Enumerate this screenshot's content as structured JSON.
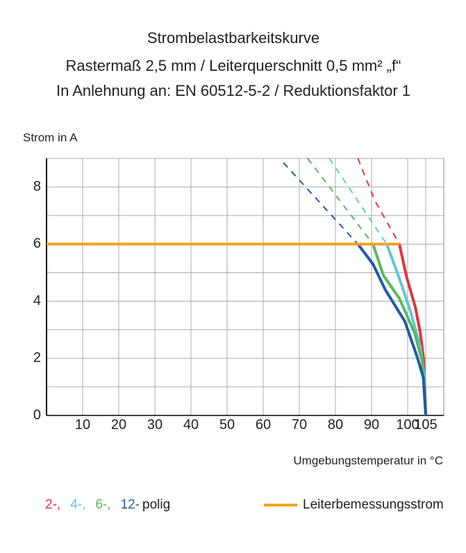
{
  "chart_data": {
    "type": "line",
    "title": "Strombelastbarkeitskurve",
    "subtitle": [
      "Rastermaß 2,5 mm / Leiterquerschnitt 0,5 mm² „f“",
      "In Anlehnung an: EN 60512-5-2 / Reduktionsfaktor 1"
    ],
    "y_label": "Strom in A",
    "x_label": "Umgebungstemperatur in °C",
    "xlim": [
      0,
      110
    ],
    "ylim": [
      0,
      9
    ],
    "xticks": [
      10,
      20,
      30,
      40,
      50,
      60,
      70,
      80,
      90,
      100,
      105
    ],
    "yticks": [
      0,
      2,
      4,
      6,
      8
    ],
    "y_minor_grid": [
      1,
      3,
      5,
      7,
      9
    ],
    "grid": true,
    "legend_suffix": "polig",
    "series": [
      {
        "name": "2-,",
        "color": "#e2343a",
        "x": [
          97.7,
          99.6,
          102.1,
          103.5,
          104.4,
          104.8,
          105
        ],
        "values": [
          6,
          4.9,
          3.8,
          2.9,
          2,
          0.9,
          0
        ],
        "extension": {
          "x": [
            86.2,
            91,
            97.7
          ],
          "values": [
            9,
            7.5,
            6
          ]
        }
      },
      {
        "name": "4-,",
        "color": "#5ec8d5",
        "x": [
          94.2,
          97.7,
          100.9,
          103.5,
          104.6,
          105
        ],
        "values": [
          6,
          4.8,
          3.6,
          2.4,
          1.4,
          0
        ],
        "extension": {
          "x": [
            78.3,
            94.2
          ],
          "values": [
            9,
            6
          ]
        }
      },
      {
        "name": "6-,",
        "color": "#5cb85a",
        "x": [
          90.4,
          93.3,
          97.7,
          101.9,
          104,
          105
        ],
        "values": [
          6,
          4.9,
          4.1,
          2.9,
          1.9,
          0
        ],
        "extension": {
          "x": [
            72.3,
            90.4
          ],
          "values": [
            9,
            6
          ]
        }
      },
      {
        "name": "12-",
        "color": "#1f5aa6",
        "x": [
          86.2,
          90.4,
          93.8,
          99.2,
          102.5,
          104.4,
          105
        ],
        "values": [
          6,
          5.3,
          4.4,
          3.3,
          2.1,
          1.3,
          0
        ],
        "extension": {
          "x": [
            65.6,
            86.2
          ],
          "values": [
            8.85,
            6
          ]
        }
      },
      {
        "name": "Leiterbemessungsstrom",
        "color": "#f5a020",
        "x": [
          0,
          97.7
        ],
        "values": [
          6,
          6
        ]
      }
    ]
  }
}
